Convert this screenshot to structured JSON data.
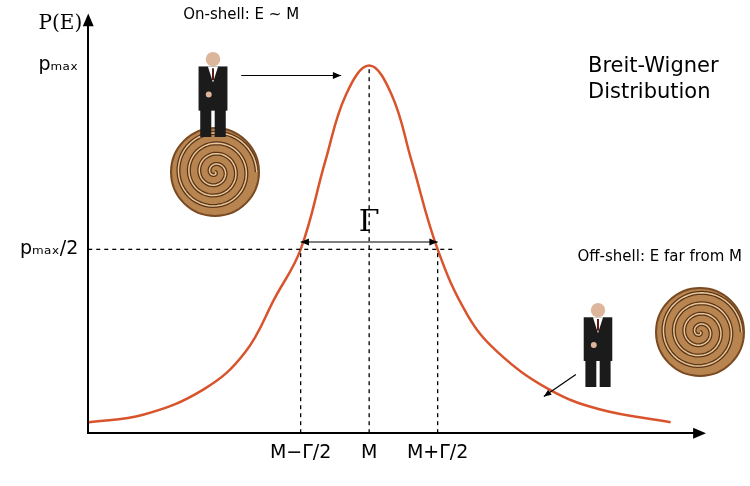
{
  "chart_data": {
    "type": "line",
    "title": "Breit-Wigner Distribution",
    "y_label": "P(E)",
    "x": [
      -4.09,
      -3.3,
      -2.41,
      -1.81,
      -1.37,
      -1.0,
      -0.64,
      -0.34,
      0,
      0.33,
      0.62,
      1.0,
      1.44,
      1.88,
      2.62,
      3.36,
      4.4
    ],
    "values": [
      0.03,
      0.05,
      0.12,
      0.22,
      0.37,
      0.5,
      0.74,
      0.92,
      1.0,
      0.92,
      0.74,
      0.5,
      0.32,
      0.22,
      0.12,
      0.065,
      0.03
    ],
    "color": "#d9542c",
    "xlim": [
      -4.1,
      4.8
    ],
    "xticks": [
      {
        "value": -1,
        "label": "M−Γ/2"
      },
      {
        "value": 0,
        "label": "M"
      },
      {
        "value": 1,
        "label": "M+Γ/2"
      }
    ],
    "ylim": [
      0,
      1.12
    ],
    "yticks": [
      {
        "value": 0.5,
        "label": "pₘₐₓ/2"
      },
      {
        "value": 1,
        "label": "pₘₐₓ"
      }
    ],
    "grid": false,
    "guides": {
      "vertical": [
        {
          "x": -1,
          "to": 0.5
        },
        {
          "x": 0,
          "to": 1
        },
        {
          "x": 1,
          "to": 0.5
        }
      ],
      "horizontal": [
        {
          "y": 0.5,
          "from": -4.1,
          "to": 1.25
        }
      ]
    },
    "width": {
      "label": "Γ",
      "from": -1,
      "to": 1,
      "y": 0.52
    },
    "annotations": [
      {
        "text": "On-shell: E ~ M",
        "x": 0,
        "y": 1
      },
      {
        "text": "Off-shell: E far from M",
        "x": 2.55,
        "y": 0.1
      }
    ]
  }
}
